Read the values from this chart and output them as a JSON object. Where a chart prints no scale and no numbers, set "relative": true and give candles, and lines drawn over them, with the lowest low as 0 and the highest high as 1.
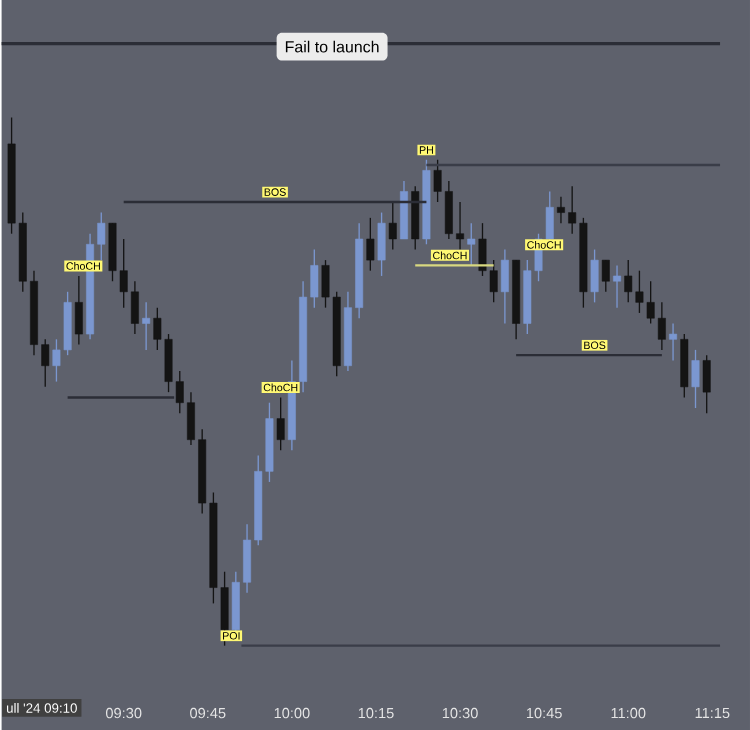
{
  "chart_data": {
    "type": "candlestick",
    "relative": true,
    "tick_labels": "x",
    "x": [
      9.1667,
      9.2,
      9.2333,
      9.2667,
      9.3,
      9.3333,
      9.3667,
      9.4,
      9.4333,
      9.4667,
      9.5,
      9.5333,
      9.5667,
      9.6,
      9.6333,
      9.6667,
      9.7,
      9.7333,
      9.7667,
      9.8,
      9.8333,
      9.8667,
      9.9,
      9.9333,
      9.9667,
      10,
      10.0333,
      10.0667,
      10.1,
      10.1333,
      10.1667,
      10.2,
      10.2333,
      10.2667,
      10.3,
      10.3333,
      10.3667,
      10.4,
      10.4333,
      10.4667,
      10.5,
      10.5333,
      10.5667,
      10.6,
      10.6333,
      10.6667,
      10.7,
      10.7333,
      10.7667,
      10.8,
      10.8333,
      10.8667,
      10.9,
      10.9333,
      10.9667,
      11,
      11.0333,
      11.0667,
      11.1,
      11.1333,
      11.1667,
      11.2,
      11.2333
    ],
    "ohlc": [
      [
        0.95,
        1.0,
        0.78,
        0.8
      ],
      [
        0.8,
        0.82,
        0.67,
        0.69
      ],
      [
        0.69,
        0.71,
        0.55,
        0.57
      ],
      [
        0.57,
        0.58,
        0.49,
        0.53
      ],
      [
        0.53,
        0.58,
        0.5,
        0.56
      ],
      [
        0.56,
        0.67,
        0.55,
        0.65
      ],
      [
        0.65,
        0.7,
        0.57,
        0.59
      ],
      [
        0.59,
        0.78,
        0.58,
        0.76
      ],
      [
        0.76,
        0.82,
        0.73,
        0.8
      ],
      [
        0.8,
        0.8,
        0.69,
        0.71
      ],
      [
        0.71,
        0.77,
        0.64,
        0.67
      ],
      [
        0.67,
        0.69,
        0.59,
        0.61
      ],
      [
        0.61,
        0.65,
        0.56,
        0.62
      ],
      [
        0.62,
        0.64,
        0.56,
        0.58
      ],
      [
        0.58,
        0.59,
        0.48,
        0.5
      ],
      [
        0.5,
        0.52,
        0.44,
        0.46
      ],
      [
        0.46,
        0.48,
        0.38,
        0.39
      ],
      [
        0.39,
        0.41,
        0.25,
        0.27
      ],
      [
        0.27,
        0.29,
        0.08,
        0.11
      ],
      [
        0.11,
        0.14,
        0,
        0.03
      ],
      [
        0.03,
        0.14,
        0.02,
        0.12
      ],
      [
        0.12,
        0.23,
        0.1,
        0.2
      ],
      [
        0.2,
        0.36,
        0.19,
        0.33
      ],
      [
        0.33,
        0.46,
        0.31,
        0.43
      ],
      [
        0.43,
        0.47,
        0.37,
        0.39
      ],
      [
        0.39,
        0.54,
        0.37,
        0.5
      ],
      [
        0.5,
        0.69,
        0.48,
        0.66
      ],
      [
        0.66,
        0.75,
        0.64,
        0.72
      ],
      [
        0.72,
        0.73,
        0.64,
        0.66
      ],
      [
        0.66,
        0.67,
        0.51,
        0.53
      ],
      [
        0.53,
        0.67,
        0.52,
        0.64
      ],
      [
        0.64,
        0.8,
        0.62,
        0.77
      ],
      [
        0.77,
        0.81,
        0.71,
        0.73
      ],
      [
        0.73,
        0.82,
        0.7,
        0.8
      ],
      [
        0.8,
        0.84,
        0.75,
        0.77
      ],
      [
        0.77,
        0.88,
        0.77,
        0.86
      ],
      [
        0.86,
        0.87,
        0.75,
        0.77
      ],
      [
        0.77,
        0.92,
        0.76,
        0.9
      ],
      [
        0.9,
        0.92,
        0.84,
        0.86
      ],
      [
        0.86,
        0.88,
        0.77,
        0.78
      ],
      [
        0.78,
        0.84,
        0.75,
        0.77
      ],
      [
        0.76,
        0.8,
        0.72,
        0.77
      ],
      [
        0.77,
        0.8,
        0.7,
        0.71
      ],
      [
        0.71,
        0.73,
        0.65,
        0.67
      ],
      [
        0.67,
        0.75,
        0.61,
        0.73
      ],
      [
        0.73,
        0.73,
        0.58,
        0.61
      ],
      [
        0.61,
        0.73,
        0.59,
        0.71
      ],
      [
        0.71,
        0.78,
        0.69,
        0.77
      ],
      [
        0.77,
        0.86,
        0.76,
        0.83
      ],
      [
        0.83,
        0.85,
        0.8,
        0.82
      ],
      [
        0.82,
        0.87,
        0.78,
        0.8
      ],
      [
        0.8,
        0.81,
        0.64,
        0.67
      ],
      [
        0.67,
        0.75,
        0.65,
        0.73
      ],
      [
        0.73,
        0.73,
        0.67,
        0.69
      ],
      [
        0.69,
        0.72,
        0.64,
        0.7
      ],
      [
        0.7,
        0.73,
        0.65,
        0.67
      ],
      [
        0.67,
        0.71,
        0.63,
        0.65
      ],
      [
        0.65,
        0.69,
        0.61,
        0.62
      ],
      [
        0.62,
        0.65,
        0.56,
        0.58
      ],
      [
        0.58,
        0.61,
        0.54,
        0.59
      ],
      [
        0.58,
        0.59,
        0.47,
        0.49
      ],
      [
        0.49,
        0.56,
        0.45,
        0.54
      ],
      [
        0.54,
        0.55,
        0.44,
        0.48
      ]
    ],
    "colors": [
      "#141414",
      "#141414",
      "#141414",
      "#141414",
      "#7b97d0",
      "#7b97d0",
      "#141414",
      "#7b97d0",
      "#7b97d0",
      "#141414",
      "#141414",
      "#141414",
      "#7b97d0",
      "#141414",
      "#141414",
      "#141414",
      "#141414",
      "#141414",
      "#141414",
      "#141414",
      "#7b97d0",
      "#7b97d0",
      "#7b97d0",
      "#7b97d0",
      "#141414",
      "#7b97d0",
      "#7b97d0",
      "#7b97d0",
      "#141414",
      "#141414",
      "#7b97d0",
      "#7b97d0",
      "#141414",
      "#7b97d0",
      "#141414",
      "#7b97d0",
      "#141414",
      "#7b97d0",
      "#141414",
      "#141414",
      "#141414",
      "#7b97d0",
      "#141414",
      "#141414",
      "#7b97d0",
      "#141414",
      "#7b97d0",
      "#7b97d0",
      "#7b97d0",
      "#141414",
      "#141414",
      "#141414",
      "#7b97d0",
      "#141414",
      "#7b97d0",
      "#141414",
      "#141414",
      "#141414",
      "#141414",
      "#7b97d0",
      "#141414",
      "#7b97d0",
      "#141414"
    ],
    "series": [
      {
        "type": "line",
        "color": "#2b2d36",
        "x": [
          9.5,
          10.4
        ],
        "values": [
          0.84,
          0.84
        ]
      },
      {
        "type": "line",
        "color": "#2b2d36",
        "x": [
          10.6667,
          11.1
        ],
        "values": [
          0.55,
          0.55
        ]
      },
      {
        "type": "line",
        "color": "#3a3d48",
        "x": [
          10.4,
          11.273
        ],
        "values": [
          0.91,
          0.91
        ]
      },
      {
        "type": "line",
        "color": "#3a3d48",
        "x": [
          9.85,
          11.273
        ],
        "values": [
          0,
          0
        ]
      },
      {
        "type": "line",
        "color": "#d8d880",
        "x": [
          10.3667,
          10.6
        ],
        "values": [
          0.72,
          0.72
        ]
      },
      {
        "type": "line",
        "color": "#2b2d36",
        "x": [
          9.3333,
          9.65
        ],
        "values": [
          0.47,
          0.47
        ]
      }
    ],
    "ref_lines": [
      {
        "axis": "y",
        "value": 1.14,
        "color": "#2b2d36"
      }
    ],
    "annotations": [
      "Fail to launch",
      "ull '24  09:10",
      {
        "text": "PH",
        "x": 10.4,
        "y": 0.92
      },
      {
        "text": "POI",
        "x": 9.82,
        "y": 0
      },
      {
        "text": "BOS",
        "x": 9.95,
        "y": 0.84
      },
      {
        "text": "BOS",
        "x": 10.9,
        "y": 0.55
      },
      {
        "text": "ChoCH",
        "x": 10.47,
        "y": 0.72
      },
      {
        "text": "ChoCH",
        "x": 10.75,
        "y": 0.74
      },
      {
        "text": "ChoCH",
        "x": 9.38,
        "y": 0.7
      },
      {
        "text": "ChoCH",
        "x": 9.9667,
        "y": 0.47
      }
    ],
    "xlim": [
      9.137,
      11.273
    ],
    "xticks": [
      {
        "value": 9.5,
        "label": "09:30"
      },
      {
        "value": 9.75,
        "label": "09:45"
      },
      {
        "value": 10,
        "label": "10:00"
      },
      {
        "value": 10.25,
        "label": "10:15"
      },
      {
        "value": 10.5,
        "label": "10:30"
      },
      {
        "value": 10.75,
        "label": "10:45"
      },
      {
        "value": 11,
        "label": "11:00"
      },
      {
        "value": 11.25,
        "label": "11:15"
      }
    ]
  }
}
